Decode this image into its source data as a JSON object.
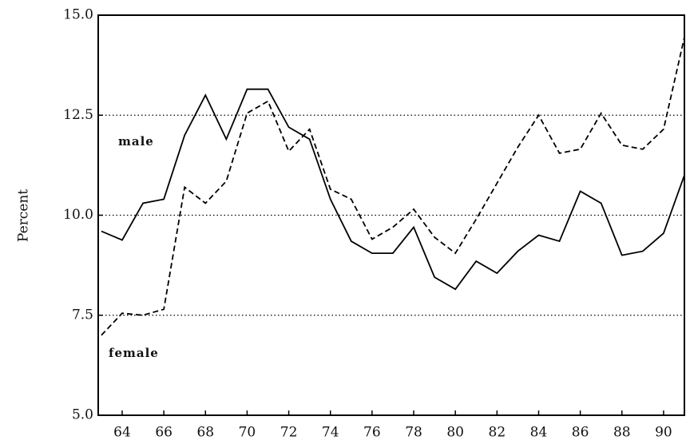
{
  "chart_data": {
    "type": "line",
    "y_label": "Percent",
    "annotations": [
      "male",
      "female"
    ],
    "x": [
      63,
      64,
      65,
      66,
      67,
      68,
      69,
      70,
      71,
      72,
      73,
      74,
      75,
      76,
      77,
      78,
      79,
      80,
      81,
      82,
      83,
      84,
      85,
      86,
      87,
      88,
      89,
      90,
      91
    ],
    "series": [
      {
        "name": "male",
        "color": "#000000",
        "style": "solid",
        "values": [
          9.6,
          9.38,
          10.3,
          10.4,
          12.0,
          13.0,
          11.9,
          13.15,
          13.15,
          12.2,
          11.9,
          10.4,
          9.35,
          9.05,
          9.05,
          9.7,
          8.45,
          8.15,
          8.85,
          8.55,
          9.1,
          9.5,
          9.35,
          10.6,
          10.3,
          9.0,
          9.1,
          9.55,
          11.0
        ]
      },
      {
        "name": "female",
        "color": "#000000",
        "style": "dashed",
        "values": [
          7.0,
          7.55,
          7.5,
          7.65,
          10.7,
          10.3,
          10.85,
          12.55,
          12.85,
          11.6,
          12.15,
          10.65,
          10.4,
          9.4,
          9.7,
          10.15,
          9.45,
          9.05,
          9.9,
          10.8,
          11.7,
          12.5,
          11.55,
          11.65,
          12.55,
          11.75,
          11.65,
          12.15,
          14.45
        ]
      }
    ],
    "xlim": [
      62.85,
      91
    ],
    "xticks": [
      64,
      66,
      68,
      70,
      72,
      74,
      76,
      78,
      80,
      82,
      84,
      86,
      88,
      90
    ],
    "ylim": [
      5,
      15
    ],
    "yticks": [
      {
        "value": 5,
        "label": "5.0"
      },
      {
        "value": 7.5,
        "label": "7.5"
      },
      {
        "value": 10,
        "label": "10.0"
      },
      {
        "value": 12.5,
        "label": "12.5"
      },
      {
        "value": 15,
        "label": "15.0"
      }
    ],
    "grid": true
  }
}
